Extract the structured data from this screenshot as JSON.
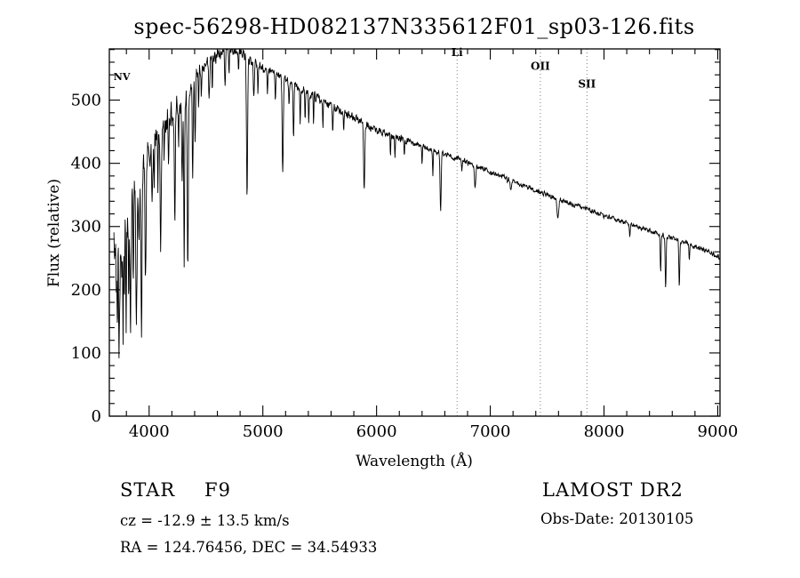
{
  "page": {
    "background": "#ffffff",
    "text_color": "#000000"
  },
  "chart_data": {
    "type": "line",
    "title": "spec-56298-HD082137N335612F01_sp03-126.fits",
    "xlabel": "Wavelength (Å)",
    "ylabel": "Flux (relative)",
    "xlim": [
      3650,
      9020
    ],
    "ylim": [
      0,
      581
    ],
    "xticks": [
      4000,
      5000,
      6000,
      7000,
      8000,
      9000
    ],
    "x_minor_step": 200,
    "yticks": [
      0,
      100,
      200,
      300,
      400,
      500
    ],
    "y_minor_step": 20,
    "grid": false,
    "legend": "none",
    "line_color": "#000000",
    "marker_line_color": "#7d7d7d",
    "spectral_markers": [
      {
        "label": "Li",
        "wavelength": 6708,
        "label_flux": 570
      },
      {
        "label": "OII",
        "wavelength": 7440,
        "label_flux": 548
      },
      {
        "label": "SII",
        "wavelength": 7850,
        "label_flux": 520
      }
    ],
    "inline_annotations": [
      {
        "label": "NV",
        "wavelength": 3760,
        "flux": 532
      }
    ],
    "series": [
      {
        "name": "spectrum",
        "wave_start": 3690,
        "wave_end": 9015,
        "sample_step": 3,
        "seed": 20130105,
        "clip_flux": [
          5,
          580
        ],
        "continuum_anchors": [
          [
            3650,
            255
          ],
          [
            3700,
            292
          ],
          [
            3760,
            316
          ],
          [
            3820,
            336
          ],
          [
            3880,
            356
          ],
          [
            3940,
            388
          ],
          [
            4000,
            426
          ],
          [
            4100,
            456
          ],
          [
            4200,
            481
          ],
          [
            4300,
            501
          ],
          [
            4400,
            536
          ],
          [
            4500,
            556
          ],
          [
            4600,
            570
          ],
          [
            4700,
            580
          ],
          [
            4800,
            578
          ],
          [
            4900,
            561
          ],
          [
            5000,
            552
          ],
          [
            5100,
            545
          ],
          [
            5200,
            531
          ],
          [
            5400,
            512
          ],
          [
            5600,
            492
          ],
          [
            5800,
            472
          ],
          [
            6000,
            452
          ],
          [
            6200,
            440
          ],
          [
            6400,
            427
          ],
          [
            6600,
            415
          ],
          [
            6800,
            401
          ],
          [
            7000,
            386
          ],
          [
            7200,
            371
          ],
          [
            7400,
            357
          ],
          [
            7600,
            343
          ],
          [
            7800,
            330
          ],
          [
            8000,
            317
          ],
          [
            8200,
            305
          ],
          [
            8400,
            293
          ],
          [
            8600,
            282
          ],
          [
            8800,
            268
          ],
          [
            9015,
            252
          ]
        ],
        "absorption_lines": [
          [
            3712,
            130,
            3
          ],
          [
            3722,
            180,
            3
          ],
          [
            3734,
            195,
            4
          ],
          [
            3745,
            120,
            3
          ],
          [
            3759,
            140,
            3
          ],
          [
            3771,
            180,
            4
          ],
          [
            3782,
            100,
            3
          ],
          [
            3798,
            160,
            4
          ],
          [
            3820,
            130,
            4
          ],
          [
            3835,
            180,
            5
          ],
          [
            3860,
            120,
            4
          ],
          [
            3889,
            190,
            5
          ],
          [
            3910,
            110,
            3
          ],
          [
            3933,
            230,
            5
          ],
          [
            3968,
            210,
            5
          ],
          [
            4026,
            110,
            4
          ],
          [
            4045,
            70,
            3
          ],
          [
            4077,
            80,
            3
          ],
          [
            4101,
            200,
            5
          ],
          [
            4132,
            60,
            3
          ],
          [
            4172,
            70,
            3
          ],
          [
            4226,
            160,
            4
          ],
          [
            4260,
            70,
            3
          ],
          [
            4290,
            120,
            4
          ],
          [
            4308,
            260,
            4
          ],
          [
            4340,
            280,
            5
          ],
          [
            4383,
            160,
            4
          ],
          [
            4404,
            90,
            4
          ],
          [
            4435,
            55,
            3
          ],
          [
            4459,
            55,
            3
          ],
          [
            4528,
            65,
            4
          ],
          [
            4556,
            50,
            3
          ],
          [
            4668,
            60,
            4
          ],
          [
            4703,
            45,
            3
          ],
          [
            4786,
            40,
            3
          ],
          [
            4861,
            220,
            5
          ],
          [
            4920,
            60,
            4
          ],
          [
            4957,
            45,
            3
          ],
          [
            5041,
            40,
            3
          ],
          [
            5110,
            45,
            3
          ],
          [
            5175,
            150,
            5
          ],
          [
            5230,
            40,
            3
          ],
          [
            5270,
            80,
            4
          ],
          [
            5328,
            55,
            3
          ],
          [
            5371,
            45,
            3
          ],
          [
            5404,
            50,
            3
          ],
          [
            5446,
            45,
            3
          ],
          [
            5528,
            45,
            3
          ],
          [
            5615,
            40,
            3
          ],
          [
            5711,
            30,
            3
          ],
          [
            5891,
            110,
            5
          ],
          [
            6122,
            30,
            3
          ],
          [
            6162,
            35,
            3
          ],
          [
            6244,
            25,
            3
          ],
          [
            6400,
            28,
            3
          ],
          [
            6495,
            40,
            3
          ],
          [
            6563,
            92,
            5
          ],
          [
            6750,
            18,
            3
          ],
          [
            6867,
            35,
            6
          ],
          [
            7180,
            15,
            6
          ],
          [
            7594,
            28,
            7
          ],
          [
            8226,
            20,
            3
          ],
          [
            8498,
            58,
            4
          ],
          [
            8542,
            82,
            4
          ],
          [
            8662,
            72,
            4
          ],
          [
            8750,
            22,
            3
          ]
        ],
        "noise_anchors": [
          [
            3650,
            58
          ],
          [
            3750,
            54
          ],
          [
            3850,
            46
          ],
          [
            3950,
            40
          ],
          [
            4050,
            30
          ],
          [
            4200,
            22
          ],
          [
            4400,
            15
          ],
          [
            4700,
            10
          ],
          [
            5000,
            8
          ],
          [
            5500,
            7
          ],
          [
            6000,
            6
          ],
          [
            6500,
            5
          ],
          [
            7000,
            4.5
          ],
          [
            8000,
            4
          ],
          [
            9015,
            4
          ]
        ]
      }
    ]
  },
  "footer": {
    "class_label": "STAR",
    "subclass_label": "F9",
    "survey_label": "LAMOST DR2",
    "cz_line": "cz = -12.9 ± 13.5 km/s",
    "obs_date_line": "Obs-Date: 20130105",
    "coords_line": "RA = 124.76456, DEC = 34.54933"
  }
}
